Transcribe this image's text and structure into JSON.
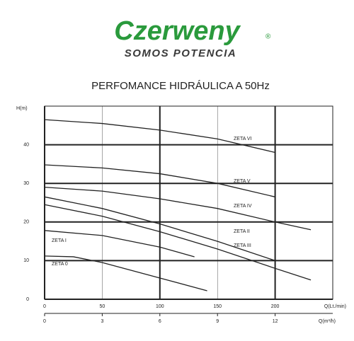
{
  "header": {
    "brand": "Czerweny",
    "registered": "®",
    "tagline": "SOMOS POTENCIA"
  },
  "chart_data": {
    "type": "line",
    "title": "PERFOMANCE HIDRÁULICA A 50Hz",
    "y_label": "H(m)",
    "x_label": "Q(Lt./min)",
    "x2_label": "Q(m³/h)",
    "xlim": [
      0,
      250
    ],
    "xticks": [
      0,
      50,
      100,
      150,
      200
    ],
    "x2lim": [
      0,
      15
    ],
    "x2ticks": [
      0,
      3,
      6,
      9,
      12
    ],
    "ylim": [
      0,
      50
    ],
    "yticks": [
      0,
      10,
      20,
      30,
      40
    ],
    "grid": true,
    "color": "#222222",
    "series": [
      {
        "name": "ZETA VI",
        "x": [
          0,
          50,
          100,
          150,
          200
        ],
        "values": [
          46.5,
          45.5,
          43.8,
          41.5,
          38
        ]
      },
      {
        "name": "ZETA V",
        "x": [
          0,
          50,
          100,
          150,
          200
        ],
        "values": [
          34.8,
          34,
          32.5,
          30,
          26.5
        ]
      },
      {
        "name": "ZETA IV",
        "x": [
          0,
          50,
          100,
          150,
          200,
          231
        ],
        "values": [
          29,
          28,
          26,
          23.5,
          20,
          18
        ]
      },
      {
        "name": "ZETA II",
        "x": [
          0,
          50,
          100,
          150,
          200
        ],
        "values": [
          26.5,
          23.5,
          19.5,
          15,
          10
        ]
      },
      {
        "name": "ZETA III",
        "x": [
          0,
          50,
          100,
          150,
          200,
          231
        ],
        "values": [
          24.5,
          21.5,
          17.5,
          13,
          8,
          5
        ]
      },
      {
        "name": "ZETA I",
        "x": [
          0,
          50,
          100,
          130
        ],
        "values": [
          17.8,
          16.5,
          13.5,
          11
        ]
      },
      {
        "name": "ZETA 0",
        "x": [
          0,
          25,
          50,
          100,
          141
        ],
        "values": [
          11.2,
          11,
          9.5,
          5.5,
          2.2
        ]
      }
    ]
  }
}
